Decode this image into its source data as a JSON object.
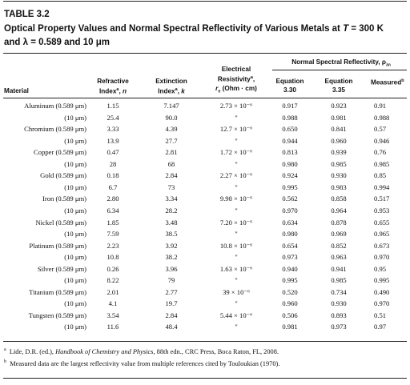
{
  "table_label": "TABLE 3.2",
  "title_line1": "Optical Property Values and Normal Spectral Reflectivity of Various Metals at ",
  "title_T": "T",
  "title_temp": " = 300 K",
  "title_line2": "and λ = 0.589 and 10 μm",
  "headers": {
    "material": "Material",
    "refractive_1": "Refractive",
    "refractive_2": "Index",
    "refractive_sup": "a",
    "refractive_var": "n",
    "extinction_1": "Extinction",
    "extinction_2": "Index",
    "extinction_sup": "a",
    "extinction_var": "k",
    "resist_1": "Electrical",
    "resist_2": "Resistivity",
    "resist_sup": "a",
    "resist_3a": "r",
    "resist_3sub": "e",
    "resist_3b": " (Ohm · cm)",
    "group": "Normal Spectral Reflectivity, ρ",
    "group_sub": "λn",
    "eq330_1": "Equation",
    "eq330_2": "3.30",
    "eq335_1": "Equation",
    "eq335_2": "3.35",
    "measured": "Measured",
    "measured_sup": "b"
  },
  "rows": [
    {
      "material": "Aluminum (0.589 μm)",
      "n": "1.15",
      "k": "7.147",
      "resist": "2.73 × 10⁻⁶",
      "eq330": "0.917",
      "eq335": "0.923",
      "measured": "0.91"
    },
    {
      "material": "(10 μm)",
      "n": "25.4",
      "k": "90.0",
      "resist": "\"",
      "eq330": "0.988",
      "eq335": "0.981",
      "measured": "0.988"
    },
    {
      "material": "Chromium (0.589 μm)",
      "n": "3.33",
      "k": "4.39",
      "resist": "12.7 × 10⁻⁶",
      "eq330": "0.650",
      "eq335": "0.841",
      "measured": "0.57"
    },
    {
      "material": "(10 μm)",
      "n": "13.9",
      "k": "27.7",
      "resist": "\"",
      "eq330": "0.944",
      "eq335": "0.960",
      "measured": "0.946"
    },
    {
      "material": "Copper (0.589 μm)",
      "n": "0.47",
      "k": "2.81",
      "resist": "1.72 × 10⁻⁶",
      "eq330": "0.813",
      "eq335": "0.939",
      "measured": "0.76"
    },
    {
      "material": "(10 μm)",
      "n": "28",
      "k": "68",
      "resist": "\"",
      "eq330": "0.980",
      "eq335": "0.985",
      "measured": "0.985"
    },
    {
      "material": "Gold (0.589 μm)",
      "n": "0.18",
      "k": "2.84",
      "resist": "2.27 × 10⁻⁶",
      "eq330": "0.924",
      "eq335": "0.930",
      "measured": "0.85"
    },
    {
      "material": "(10 μm)",
      "n": "6.7",
      "k": "73",
      "resist": "\"",
      "eq330": "0.995",
      "eq335": "0.983",
      "measured": "0.994"
    },
    {
      "material": "Iron (0.589 μm)",
      "n": "2.80",
      "k": "3.34",
      "resist": "9.98 × 10⁻⁶",
      "eq330": "0.562",
      "eq335": "0.858",
      "measured": "0.517"
    },
    {
      "material": "(10 μm)",
      "n": "6.34",
      "k": "28.2",
      "resist": "\"",
      "eq330": "0.970",
      "eq335": "0.964",
      "measured": "0.953"
    },
    {
      "material": "Nickel (0.589 μm)",
      "n": "1.85",
      "k": "3.48",
      "resist": "7.20 × 10⁻⁶",
      "eq330": "0.634",
      "eq335": "0.878",
      "measured": "0.655"
    },
    {
      "material": "(10 μm)",
      "n": "7.59",
      "k": "38.5",
      "resist": "\"",
      "eq330": "0.980",
      "eq335": "0.969",
      "measured": "0.965"
    },
    {
      "material": "Platinum (0.589 μm)",
      "n": "2.23",
      "k": "3.92",
      "resist": "10.8 × 10⁻⁶",
      "eq330": "0.654",
      "eq335": "0.852",
      "measured": "0.673"
    },
    {
      "material": "(10 μm)",
      "n": "10.8",
      "k": "38.2",
      "resist": "\"",
      "eq330": "0.973",
      "eq335": "0.963",
      "measured": "0.970"
    },
    {
      "material": "Silver (0.589 μm)",
      "n": "0.26",
      "k": "3.96",
      "resist": "1.63 × 10⁻⁶",
      "eq330": "0.940",
      "eq335": "0.941",
      "measured": "0.95"
    },
    {
      "material": "(10 μm)",
      "n": "8.22",
      "k": "79",
      "resist": "\"",
      "eq330": "0.995",
      "eq335": "0.985",
      "measured": "0.995"
    },
    {
      "material": "Titanium (0.589 μm)",
      "n": "2.01",
      "k": "2.77",
      "resist": "39 × 10⁻⁶",
      "eq330": "0.520",
      "eq335": "0.734",
      "measured": "0.490"
    },
    {
      "material": "(10 μm)",
      "n": "4.1",
      "k": "19.7",
      "resist": "\"",
      "eq330": "0.960",
      "eq335": "0.930",
      "measured": "0.970"
    },
    {
      "material": "Tungsten (0.589 μm)",
      "n": "3.54",
      "k": "2.84",
      "resist": "5.44 × 10⁻⁶",
      "eq330": "0.506",
      "eq335": "0.893",
      "measured": "0.51"
    },
    {
      "material": "(10 μm)",
      "n": "11.6",
      "k": "48.4",
      "resist": "\"",
      "eq330": "0.981",
      "eq335": "0.973",
      "measured": "0.97"
    }
  ],
  "footnotes": {
    "a_mark": "a",
    "a_pre": "Lide, D.R. (ed.), ",
    "a_italic": "Handbook of Chemistry and Physics",
    "a_post": ", 88th edn., CRC Press, Boca Raton, FL, 2008.",
    "b_mark": "b",
    "b_text": "Measured data are the largest reflectivity value from multiple references cited by Touloukian (1970)."
  }
}
